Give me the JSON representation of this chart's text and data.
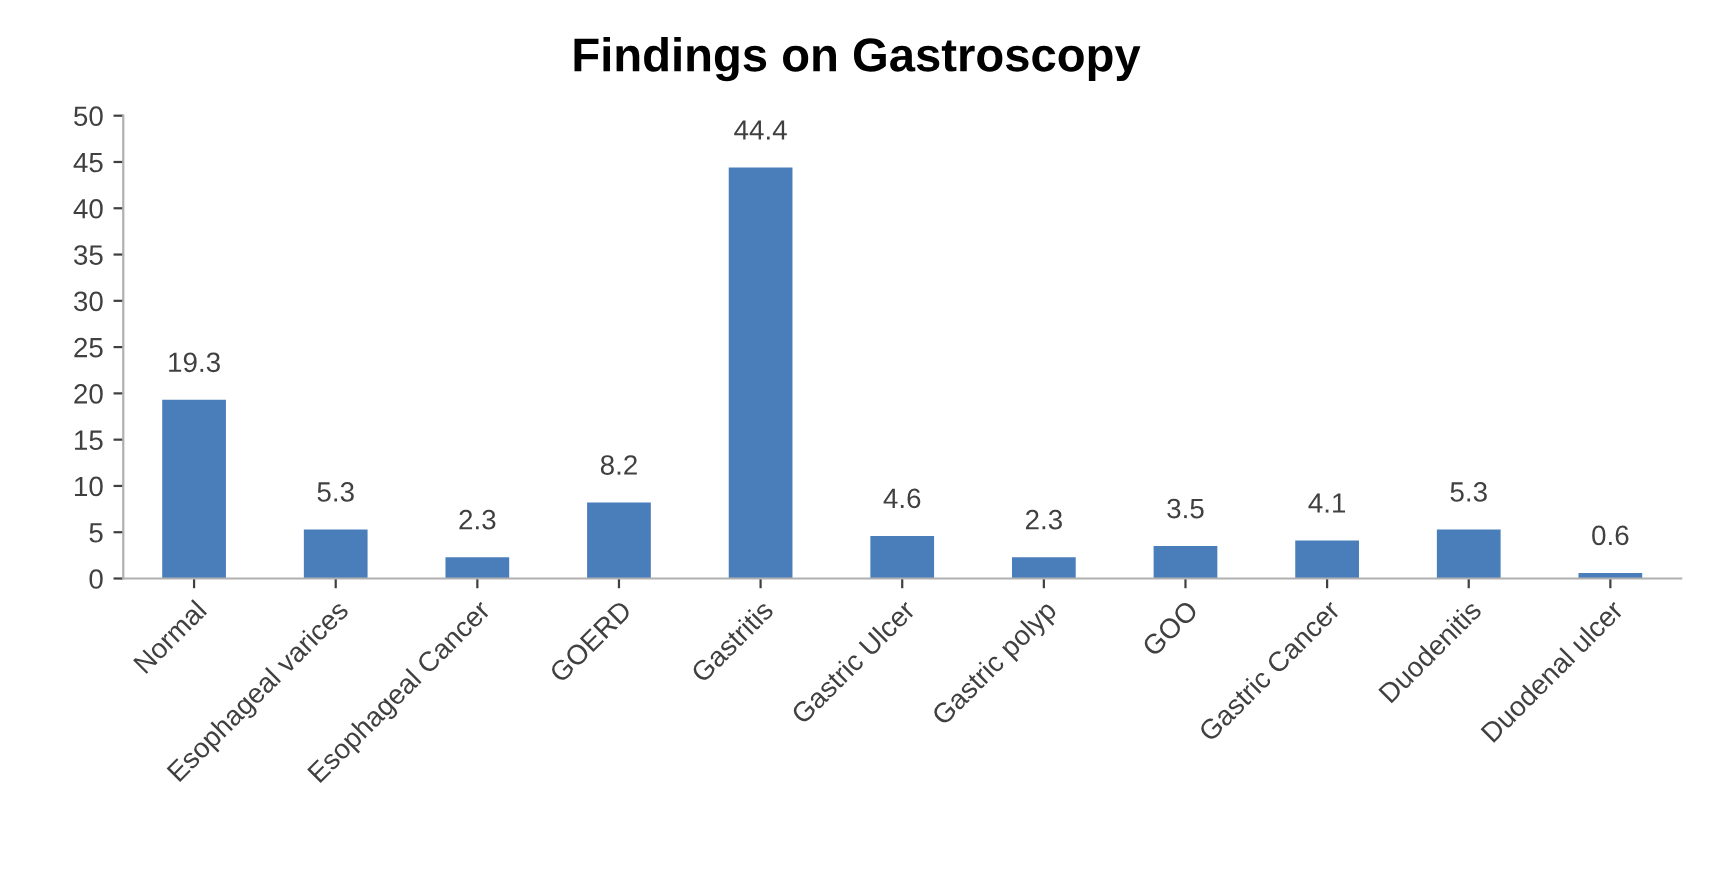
{
  "chart_data": {
    "type": "bar",
    "title": "Findings on Gastroscopy",
    "categories": [
      "Normal",
      "Esophageal varices",
      "Esophageal Cancer",
      "GOERD",
      "Gastritis",
      "Gastric Ulcer",
      "Gastric polyp",
      "GOO",
      "Gastric Cancer",
      "Duodenitis",
      "Duodenal ulcer"
    ],
    "values": [
      19.3,
      5.3,
      2.3,
      8.2,
      44.4,
      4.6,
      2.3,
      3.5,
      4.1,
      5.3,
      0.6
    ],
    "color": "#4a7ebb",
    "ylim": [
      0,
      50
    ],
    "yticks": [
      0,
      5,
      10,
      15,
      20,
      25,
      30,
      35,
      40,
      45,
      50
    ],
    "data_labels": true,
    "grid": false,
    "legend": false
  }
}
